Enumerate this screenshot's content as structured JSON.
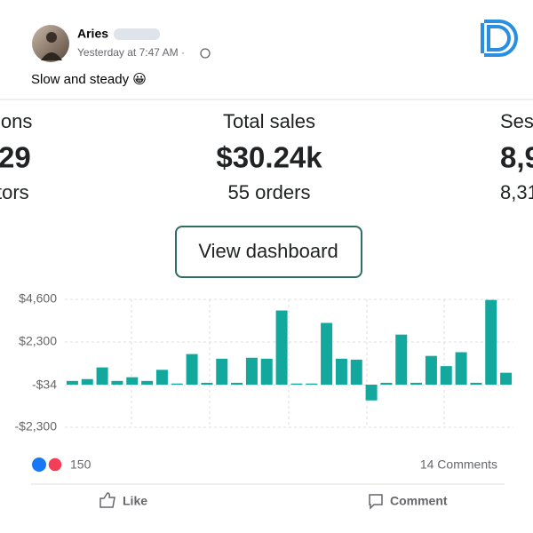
{
  "post": {
    "author": "Aries",
    "time": "Yesterday at 7:47 AM ·",
    "text": "Slow and steady 😀"
  },
  "stats": {
    "left": {
      "label": "ions",
      "value": "29",
      "sub": "tors"
    },
    "center": {
      "label": "Total sales",
      "value": "$30.24k",
      "sub": "55 orders"
    },
    "right": {
      "label": "Ses",
      "value": "8,9",
      "sub": "8,31"
    }
  },
  "button": "View dashboard",
  "chart_data": {
    "type": "bar",
    "color": "#13a89e",
    "categories": [
      null,
      null,
      null,
      null,
      null,
      null,
      null,
      null,
      null,
      null,
      null,
      null,
      null,
      null,
      null,
      null,
      null,
      null,
      null,
      null,
      null,
      null,
      null,
      null,
      null,
      null,
      null,
      null,
      null,
      null
    ],
    "values": [
      200,
      300,
      930,
      200,
      400,
      200,
      800,
      60,
      1650,
      100,
      1400,
      100,
      1450,
      1400,
      4000,
      60,
      60,
      3330,
      1400,
      1350,
      -850,
      100,
      2700,
      100,
      1550,
      1000,
      1750,
      100,
      4570,
      640
    ],
    "ylim": [
      -2300,
      4600
    ],
    "yticks": [
      {
        "value": 4600,
        "label": "$4,600"
      },
      {
        "value": 2300,
        "label": "$2,300"
      },
      {
        "value": -34,
        "label": "-$34"
      },
      {
        "value": -2300,
        "label": "-$2,300"
      }
    ],
    "grid": true
  },
  "footer": {
    "reactions": "150",
    "comments": "14 Comments",
    "like": "Like",
    "comment": "Comment"
  }
}
